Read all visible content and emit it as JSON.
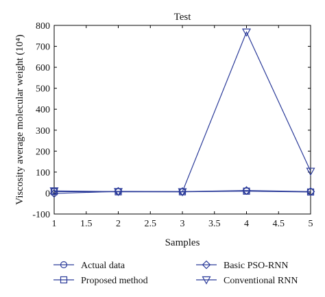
{
  "chart_data": {
    "type": "line",
    "title": "Test",
    "xlabel": "Samples",
    "ylabel": "Viscosity average molecular weight (10⁴)",
    "xlim": [
      1,
      5
    ],
    "ylim": [
      -100,
      800
    ],
    "x_ticks": [
      1,
      1.5,
      2,
      2.5,
      3,
      3.5,
      4,
      4.5,
      5
    ],
    "x_tick_labels": [
      "1",
      "1.5",
      "2",
      "2.5",
      "3",
      "3.5",
      "4",
      "4.5",
      "5"
    ],
    "y_ticks": [
      -100,
      0,
      100,
      200,
      300,
      400,
      500,
      600,
      700,
      800
    ],
    "y_tick_labels": [
      "-100",
      "0",
      "100",
      "200",
      "300",
      "400",
      "500",
      "600",
      "700",
      "800"
    ],
    "grid": false,
    "legend_placement": "below",
    "x": [
      1,
      2,
      3,
      4,
      5
    ],
    "series": [
      {
        "name": "Actual data",
        "marker": "circle",
        "color": "#2a3a99",
        "values": [
          8,
          7,
          7,
          10,
          6
        ]
      },
      {
        "name": "Proposed method",
        "marker": "square",
        "color": "#2a3a99",
        "values": [
          7,
          6,
          6,
          9,
          5
        ]
      },
      {
        "name": "Basic PSO-RNN",
        "marker": "diamond",
        "color": "#2a3a99",
        "values": [
          -2,
          8,
          7,
          12,
          7
        ]
      },
      {
        "name": "Conventional RNN",
        "marker": "triangle-down",
        "color": "#2a3a99",
        "values": [
          10,
          7,
          6,
          768,
          104
        ]
      }
    ]
  }
}
